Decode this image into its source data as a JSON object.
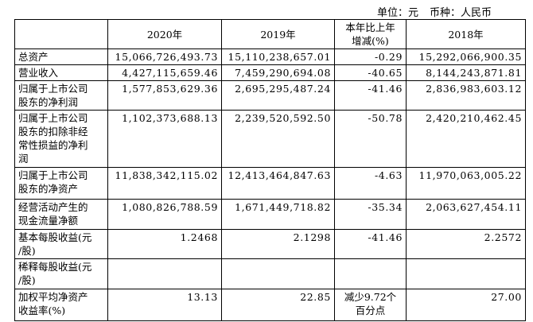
{
  "header": {
    "unit": "单位：元",
    "currency": "币种：人民币"
  },
  "table": {
    "columns": [
      [
        "2020年"
      ],
      [
        "2019年"
      ],
      [
        "本年比上年",
        "增减(%)"
      ],
      [
        "2018年"
      ]
    ],
    "rows": [
      {
        "label": [
          "总资产"
        ],
        "cells": [
          "15,066,726,493.73",
          "15,110,238,657.01",
          "-0.29",
          "15,292,066,900.35"
        ]
      },
      {
        "label": [
          "营业收入"
        ],
        "cells": [
          "4,427,115,659.46",
          "7,459,290,694.08",
          "-40.65",
          "8,144,243,871.81"
        ]
      },
      {
        "label": [
          "归属于上市公司",
          "股东的净利润"
        ],
        "cells": [
          "1,577,853,629.36",
          "2,695,295,487.24",
          "-41.46",
          "2,836,983,603.12"
        ]
      },
      {
        "label": [
          "归属于上市公司",
          "股东的扣除非经",
          "常性损益的净利",
          "润"
        ],
        "cells": [
          "1,102,373,688.13",
          "2,239,520,592.50",
          "-50.78",
          "2,420,210,462.45"
        ]
      },
      {
        "label": [
          "归属于上市公司",
          "股东的净资产"
        ],
        "cells": [
          "11,838,342,115.02",
          "12,413,464,847.63",
          "-4.63",
          "11,970,063,005.22"
        ]
      },
      {
        "label": [
          "经营活动产生的",
          "现金流量净额"
        ],
        "cells": [
          "1,080,826,788.59",
          "1,671,449,718.82",
          "-35.34",
          "2,063,627,454.11"
        ]
      },
      {
        "label": [
          "基本每股收益(元",
          "/股)"
        ],
        "cells": [
          "1.2468",
          "2.1298",
          "-41.46",
          "2.2572"
        ]
      },
      {
        "label": [
          "稀释每股收益(元",
          "/股)"
        ],
        "cells": []
      },
      {
        "label": [
          "加权平均净资产",
          "收益率(%)"
        ],
        "cells": [
          "13.13",
          "22.85",
          [
            "减少9.72个",
            "百分点"
          ],
          "27.00"
        ]
      }
    ]
  }
}
